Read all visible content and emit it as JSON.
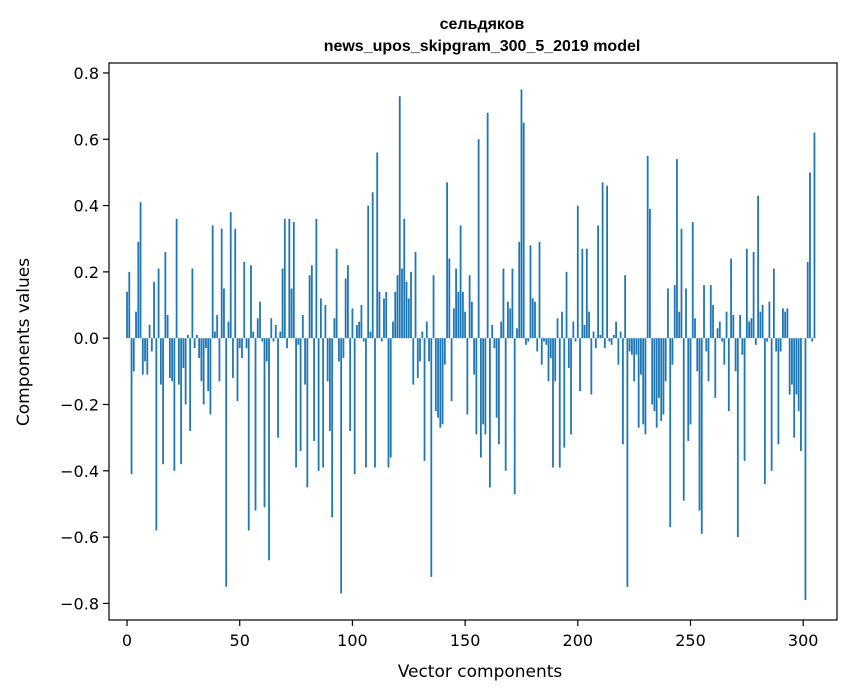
{
  "chart_data": {
    "type": "bar",
    "title_line1": "сельдяков",
    "title_line2": "news_upos_skipgram_300_5_2019 model",
    "xlabel": "Vector components",
    "ylabel": "Components values",
    "xlim": [
      -8,
      315
    ],
    "ylim": [
      -0.85,
      0.83
    ],
    "xticks": [
      0,
      50,
      100,
      150,
      200,
      250,
      300
    ],
    "yticks": [
      -0.8,
      -0.6,
      -0.4,
      -0.2,
      0.0,
      0.2,
      0.4,
      0.6,
      0.8
    ],
    "xtick_labels": [
      "0",
      "50",
      "100",
      "150",
      "200",
      "250",
      "300"
    ],
    "ytick_labels": [
      "−0.8",
      "−0.6",
      "−0.4",
      "−0.2",
      "0.0",
      "0.2",
      "0.4",
      "0.6",
      "0.8"
    ],
    "bar_color": "#1f77b4",
    "grid": false,
    "values": [
      0.14,
      0.2,
      -0.41,
      -0.1,
      0.08,
      0.29,
      0.41,
      -0.11,
      -0.07,
      -0.11,
      0.04,
      -0.04,
      0.17,
      -0.58,
      0.21,
      -0.14,
      -0.38,
      0.26,
      0.07,
      -0.12,
      -0.13,
      -0.4,
      0.36,
      -0.14,
      -0.38,
      -0.09,
      -0.2,
      0.01,
      -0.28,
      0.21,
      -0.03,
      0.01,
      -0.06,
      -0.13,
      -0.2,
      -0.03,
      -0.16,
      -0.23,
      0.34,
      0.02,
      0.07,
      -0.13,
      0.33,
      0.15,
      -0.75,
      0.05,
      0.38,
      -0.12,
      0.33,
      -0.19,
      -0.03,
      -0.06,
      0.23,
      -0.03,
      -0.58,
      0.22,
      0.02,
      -0.52,
      0.06,
      0.11,
      -0.01,
      -0.51,
      -0.07,
      -0.67,
      0.06,
      -0.01,
      0.04,
      -0.3,
      0.02,
      0.21,
      0.36,
      -0.03,
      0.36,
      0.15,
      0.35,
      -0.39,
      -0.02,
      -0.34,
      0.07,
      -0.14,
      -0.45,
      0.19,
      0.22,
      -0.31,
      0.36,
      -0.4,
      0.12,
      -0.39,
      0.1,
      -0.13,
      -0.28,
      -0.54,
      0.06,
      0.27,
      -0.07,
      -0.77,
      -0.06,
      0.18,
      0.22,
      -0.28,
      0.09,
      -0.41,
      0.04,
      0.05,
      0.1,
      -0.01,
      -0.39,
      0.4,
      0.02,
      0.44,
      -0.39,
      0.56,
      0.14,
      -0.01,
      0.12,
      0.14,
      -0.39,
      -0.36,
      0.05,
      0.14,
      0.19,
      0.73,
      0.21,
      0.36,
      0.17,
      0.12,
      0.2,
      -0.14,
      0.26,
      -0.12,
      -0.07,
      0.02,
      -0.37,
      0.05,
      -0.07,
      -0.72,
      0.19,
      -0.22,
      -0.24,
      -0.27,
      -0.26,
      -0.08,
      0.47,
      0.24,
      -0.19,
      0.09,
      0.21,
      0.14,
      0.34,
      0.14,
      0.08,
      -0.23,
      0.19,
      0.11,
      -0.11,
      -0.29,
      0.6,
      -0.36,
      -0.26,
      -0.29,
      0.68,
      -0.45,
      0.04,
      -0.03,
      -0.24,
      -0.32,
      0.05,
      0.21,
      -0.4,
      0.11,
      0.09,
      0.21,
      -0.47,
      0.03,
      0.29,
      0.75,
      0.65,
      -0.02,
      -0.01,
      0.28,
      0.12,
      0.11,
      -0.04,
      0.29,
      -0.08,
      -0.01,
      -0.02,
      -0.13,
      -0.06,
      -0.39,
      -0.13,
      0.06,
      -0.39,
      0.08,
      -0.33,
      0.2,
      -0.09,
      -0.29,
      0.05,
      -0.01,
      0.4,
      -0.16,
      0.27,
      0.04,
      0.27,
      0.08,
      -0.17,
      0.02,
      -0.03,
      0.34,
      0.01,
      0.47,
      -0.03,
      0.46,
      -0.01,
      -0.02,
      0.01,
      0.05,
      -0.08,
      0.02,
      -0.32,
      0.19,
      -0.75,
      -0.04,
      -0.05,
      -0.13,
      -0.05,
      -0.27,
      -0.11,
      -0.26,
      -0.29,
      0.55,
      0.39,
      -0.2,
      -0.22,
      -0.27,
      -0.18,
      -0.25,
      -0.23,
      -0.13,
      0.15,
      -0.57,
      -0.08,
      0.16,
      0.54,
      0.08,
      0.33,
      -0.49,
      0.15,
      -0.31,
      -0.26,
      0.35,
      0.06,
      -0.1,
      -0.52,
      -0.59,
      0.16,
      -0.04,
      -0.13,
      0.16,
      0.1,
      -0.18,
      0.03,
      0.05,
      -0.01,
      -0.08,
      0.08,
      -0.22,
      0.24,
      0.07,
      -0.1,
      -0.6,
      0.07,
      -0.05,
      -0.37,
      0.27,
      0.05,
      0.06,
      0.26,
      -0.02,
      0.43,
      0.08,
      0.1,
      -0.44,
      -0.01,
      0.11,
      -0.4,
      0.21,
      -0.04,
      -0.32,
      -0.04,
      0.09,
      0.08,
      0.09,
      -0.17,
      -0.14,
      -0.3,
      -0.17,
      -0.22,
      -0.34,
      0.0,
      -0.79,
      0.23,
      0.5,
      -0.01,
      0.62
    ]
  }
}
